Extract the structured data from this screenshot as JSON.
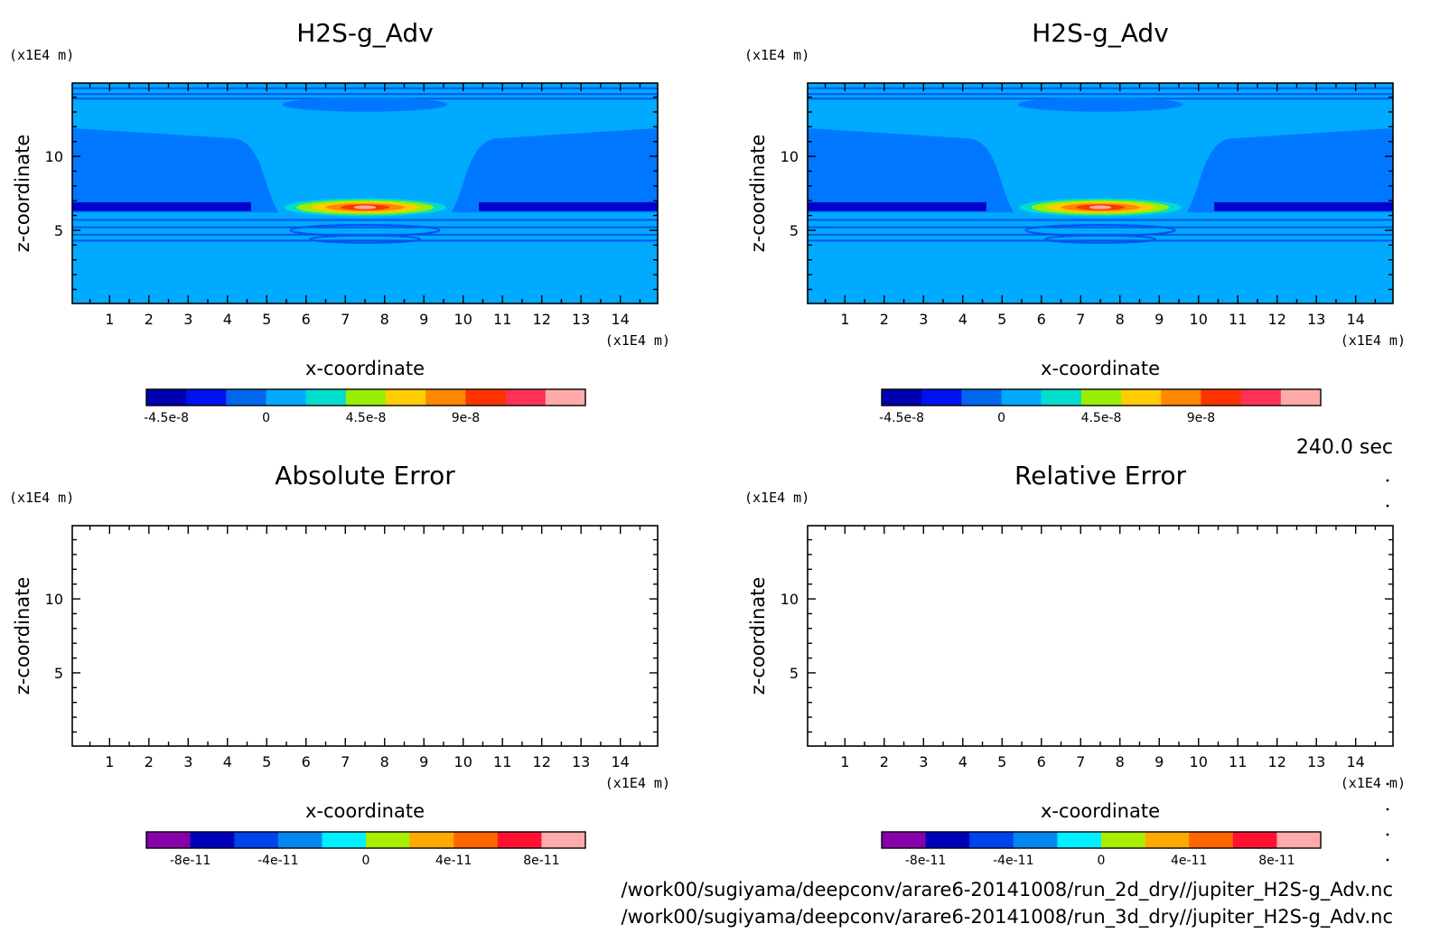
{
  "colors": {
    "panel_bg": "#00aaff",
    "contour_blue_dark": "#0000cc",
    "contour_blue_mid": "#0055ee",
    "contour_blue": "#0077ff",
    "contour_cyan": "#00ccff"
  },
  "time_label": "240.0 sec",
  "file_paths": [
    "/work00/sugiyama/deepconv/arare6-20141008/run_2d_dry//jupiter_H2S-g_Adv.nc",
    "/work00/sugiyama/deepconv/arare6-20141008/run_3d_dry//jupiter_H2S-g_Adv.nc"
  ],
  "chart_data": [
    {
      "id": "top-left",
      "type": "heatmap",
      "title": "H2S-g_Adv",
      "xlabel": "x-coordinate",
      "ylabel": "z-coordinate",
      "x_unit": "(x1E4 m)",
      "y_unit": "(x1E4 m)",
      "xlim": [
        0.05,
        14.95
      ],
      "ylim": [
        0.05,
        14.95
      ],
      "xticks": [
        "1",
        "2",
        "3",
        "4",
        "5",
        "6",
        "7",
        "8",
        "9",
        "10",
        "11",
        "12",
        "13",
        "14"
      ],
      "yticks": [
        "5",
        "10"
      ],
      "has_field": true,
      "colorbar": {
        "colors": [
          "#0000b0",
          "#0011ee",
          "#0066ee",
          "#00aaff",
          "#00ddcc",
          "#99ee00",
          "#ffcc00",
          "#ff8800",
          "#ff3300",
          "#ff3355",
          "#ffaaaa"
        ],
        "labels": [
          "-4.5e-8",
          "0",
          "4.5e-8",
          "9e-8"
        ],
        "label_positions": [
          0.5,
          3.0,
          5.5,
          8.0
        ]
      }
    },
    {
      "id": "top-right",
      "type": "heatmap",
      "title": "H2S-g_Adv",
      "xlabel": "x-coordinate",
      "ylabel": "z-coordinate",
      "x_unit": "(x1E4 m)",
      "y_unit": "(x1E4 m)",
      "xlim": [
        0.05,
        14.95
      ],
      "ylim": [
        0.05,
        14.95
      ],
      "xticks": [
        "1",
        "2",
        "3",
        "4",
        "5",
        "6",
        "7",
        "8",
        "9",
        "10",
        "11",
        "12",
        "13",
        "14"
      ],
      "yticks": [
        "5",
        "10"
      ],
      "has_field": true,
      "colorbar": {
        "colors": [
          "#0000b0",
          "#0011ee",
          "#0066ee",
          "#00aaff",
          "#00ddcc",
          "#99ee00",
          "#ffcc00",
          "#ff8800",
          "#ff3300",
          "#ff3355",
          "#ffaaaa"
        ],
        "labels": [
          "-4.5e-8",
          "0",
          "4.5e-8",
          "9e-8"
        ],
        "label_positions": [
          0.5,
          3.0,
          5.5,
          8.0
        ]
      }
    },
    {
      "id": "bottom-left",
      "type": "heatmap",
      "title": "Absolute Error",
      "xlabel": "x-coordinate",
      "ylabel": "z-coordinate",
      "x_unit": "(x1E4 m)",
      "y_unit": "(x1E4 m)",
      "xlim": [
        0.05,
        14.95
      ],
      "ylim": [
        0.05,
        14.95
      ],
      "xticks": [
        "1",
        "2",
        "3",
        "4",
        "5",
        "6",
        "7",
        "8",
        "9",
        "10",
        "11",
        "12",
        "13",
        "14"
      ],
      "yticks": [
        "5",
        "10"
      ],
      "has_field": false,
      "colorbar": {
        "colors": [
          "#8800aa",
          "#0000bb",
          "#0044ee",
          "#0088ee",
          "#00eeff",
          "#aaee00",
          "#ffaa00",
          "#ff6600",
          "#ff1133",
          "#ffaaaa"
        ],
        "labels": [
          "-8e-11",
          "-4e-11",
          "0",
          "4e-11",
          "8e-11"
        ],
        "label_positions": [
          1.0,
          3.0,
          5.0,
          7.0,
          9.0
        ]
      }
    },
    {
      "id": "bottom-right",
      "type": "heatmap",
      "title": "Relative Error",
      "xlabel": "x-coordinate",
      "ylabel": "z-coordinate",
      "x_unit": "(x1E4 m)",
      "y_unit": "(x1E4 m)",
      "xlim": [
        0.05,
        14.95
      ],
      "ylim": [
        0.05,
        14.95
      ],
      "xticks": [
        "1",
        "2",
        "3",
        "4",
        "5",
        "6",
        "7",
        "8",
        "9",
        "10",
        "11",
        "12",
        "13",
        "14"
      ],
      "yticks": [
        "5",
        "10"
      ],
      "has_field": false,
      "colorbar": {
        "colors": [
          "#8800aa",
          "#0000bb",
          "#0044ee",
          "#0088ee",
          "#00eeff",
          "#aaee00",
          "#ffaa00",
          "#ff6600",
          "#ff1133",
          "#ffaaaa"
        ],
        "labels": [
          "-8e-11",
          "-4e-11",
          "0",
          "4e-11",
          "8e-11"
        ],
        "label_positions": [
          1.0,
          3.0,
          5.0,
          7.0,
          9.0
        ]
      }
    }
  ]
}
